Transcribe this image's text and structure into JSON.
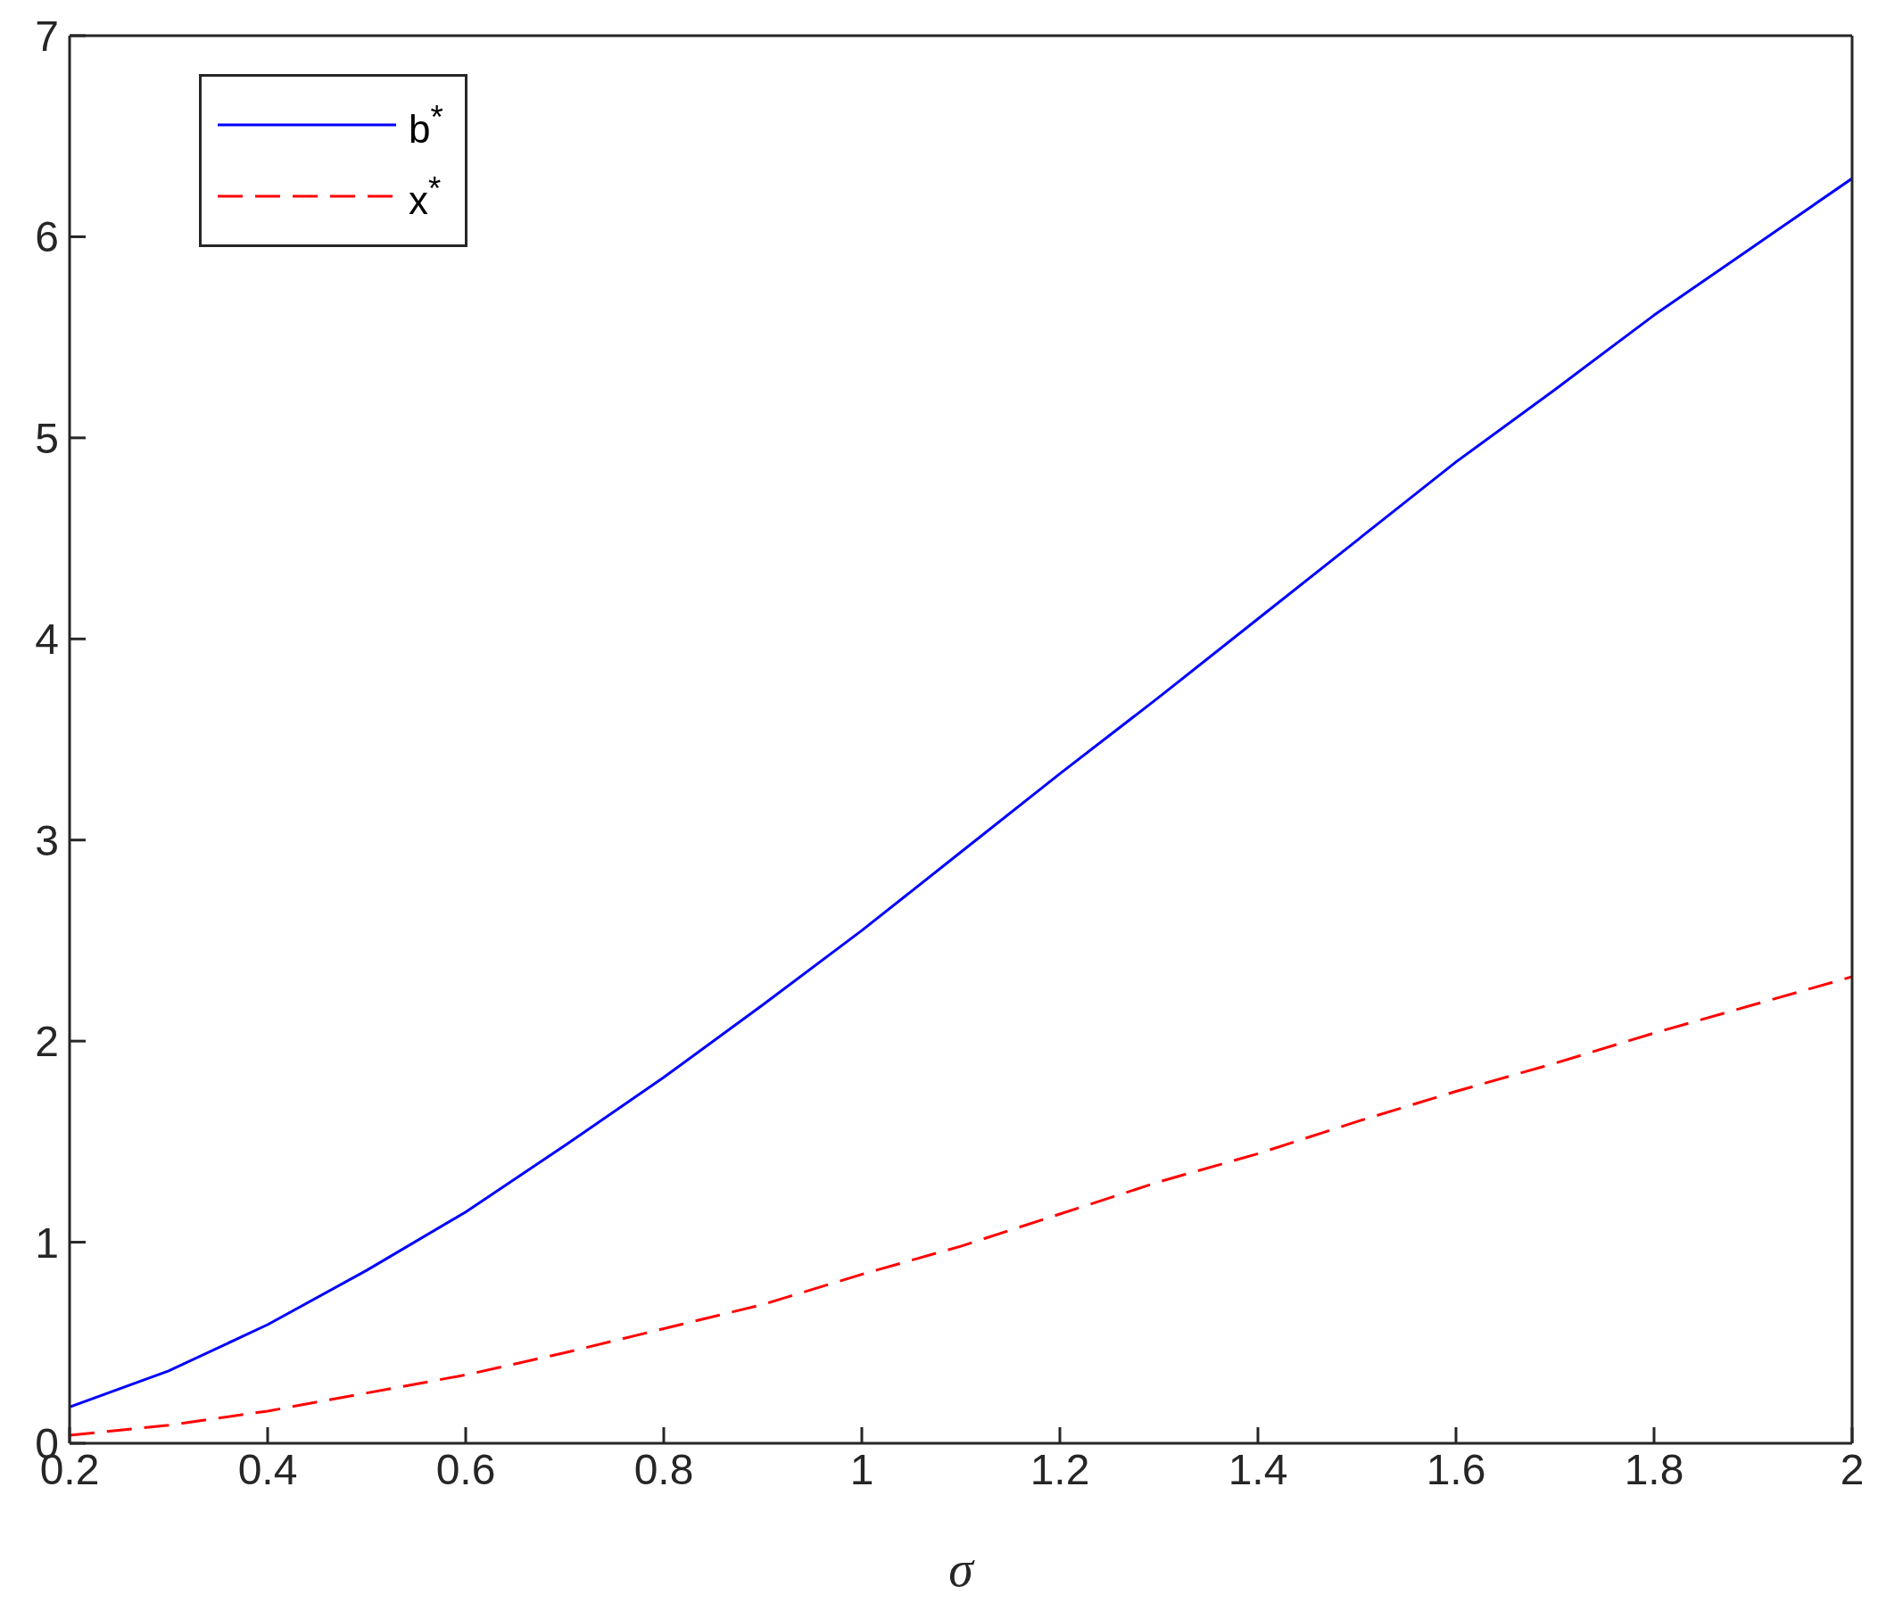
{
  "chart_data": {
    "type": "line",
    "xlabel": "σ",
    "x": [
      0.2,
      0.3,
      0.4,
      0.5,
      0.6,
      0.7,
      0.8,
      0.9,
      1.0,
      1.1,
      1.2,
      1.3,
      1.4,
      1.5,
      1.6,
      1.7,
      1.8,
      1.9,
      2.0
    ],
    "series": [
      {
        "name": "b$^{*}$",
        "color": "#0000ff",
        "line_style": "solid",
        "values": [
          0.18,
          0.36,
          0.59,
          0.86,
          1.15,
          1.48,
          1.82,
          2.18,
          2.55,
          2.94,
          3.33,
          3.71,
          4.1,
          4.49,
          4.88,
          5.24,
          5.61,
          5.95,
          6.29
        ]
      },
      {
        "name": "x$^{*}$",
        "color": "#ff0000",
        "line_style": "dashed",
        "values": [
          0.04,
          0.09,
          0.16,
          0.25,
          0.34,
          0.45,
          0.57,
          0.69,
          0.84,
          0.98,
          1.14,
          1.3,
          1.44,
          1.6,
          1.75,
          1.89,
          2.04,
          2.18,
          2.32
        ]
      }
    ],
    "xlim": [
      0.2,
      2
    ],
    "xticks": [
      0.2,
      0.4,
      0.6,
      0.8,
      1,
      1.2,
      1.4,
      1.6,
      1.8,
      2
    ],
    "ylim": [
      0,
      7
    ],
    "yticks": [
      0,
      1,
      2,
      3,
      4,
      5,
      6,
      7
    ],
    "legend": "top left",
    "marker": "none",
    "grid": false
  }
}
